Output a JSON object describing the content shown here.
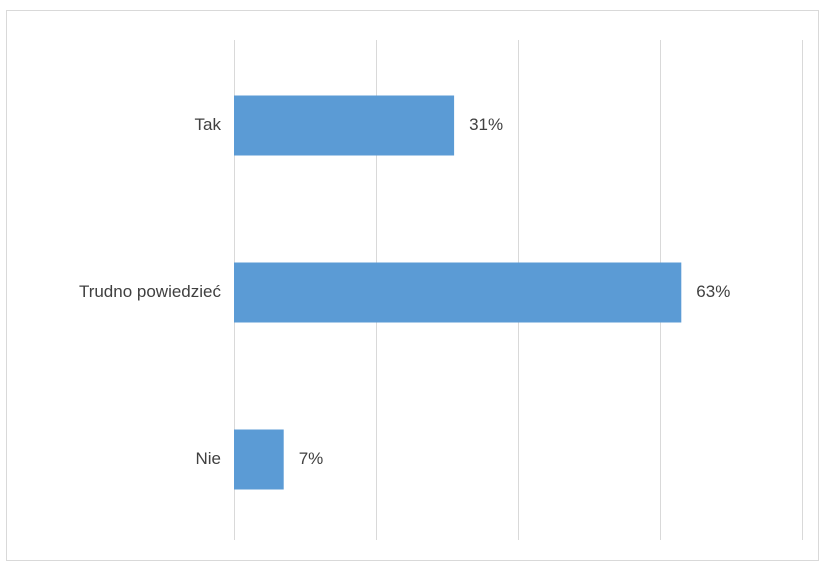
{
  "chart_data": {
    "type": "bar",
    "orientation": "horizontal",
    "categories": [
      "Tak",
      "Trudno powiedzieć",
      "Nie"
    ],
    "values": [
      31,
      63,
      7
    ],
    "value_labels": [
      "31%",
      "63%",
      "7%"
    ],
    "unit": "%",
    "xlim": [
      0,
      80
    ],
    "grid": true,
    "legend": "none",
    "bar_color": "#5b9bd5",
    "gridline_color": "#d9d9d9",
    "text_color": "#404040"
  }
}
